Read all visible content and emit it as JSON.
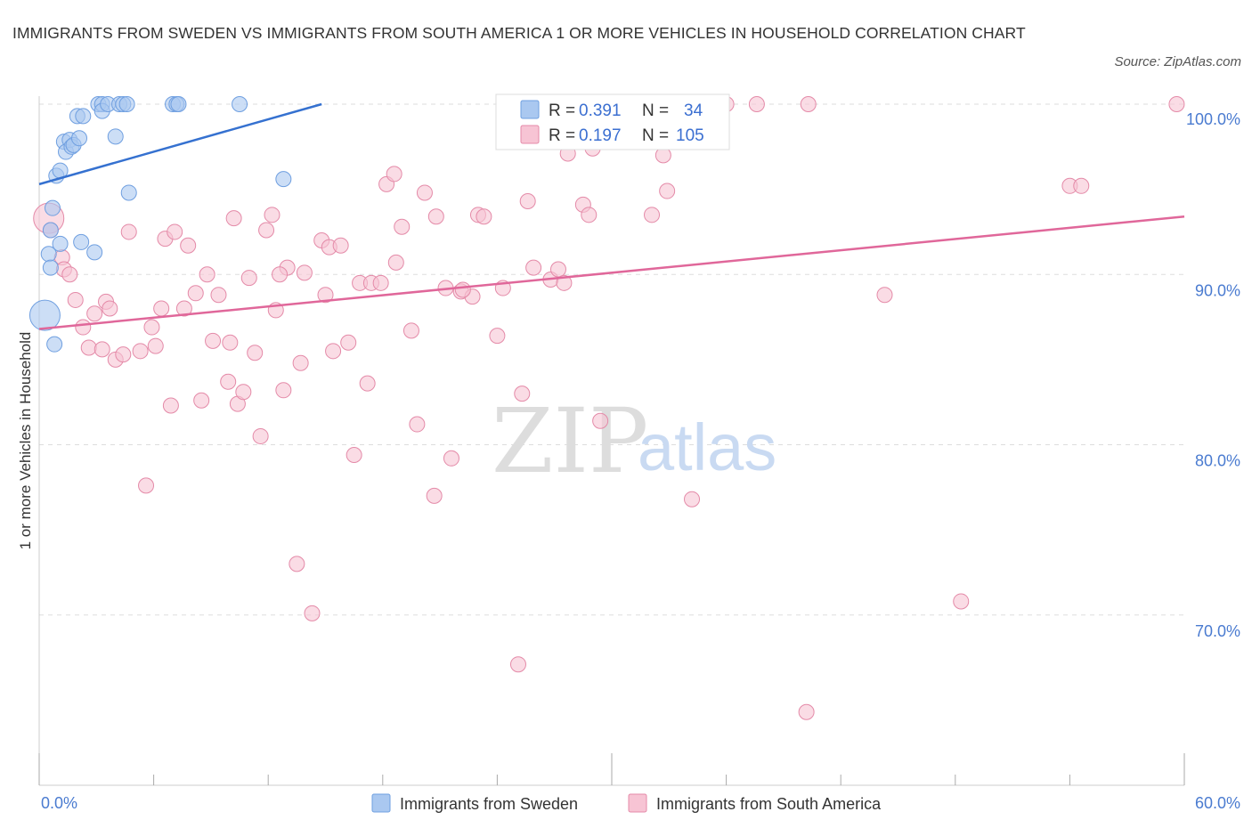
{
  "title": "IMMIGRANTS FROM SWEDEN VS IMMIGRANTS FROM SOUTH AMERICA 1 OR MORE VEHICLES IN HOUSEHOLD CORRELATION CHART",
  "source": "Source: ZipAtlas.com",
  "watermark": {
    "zip": "ZIP",
    "atlas": "atlas"
  },
  "legend": {
    "r_label": "R =",
    "n_label": "N =",
    "rows": [
      {
        "r": "0.391",
        "n": "34"
      },
      {
        "r": "0.197",
        "n": "105"
      }
    ]
  },
  "colors": {
    "sweden_fill": "#aac8f0",
    "sweden_stroke": "#6f9fe0",
    "sweden_line": "#3571d0",
    "sa_fill": "#f7c4d4",
    "sa_stroke": "#e48aa8",
    "sa_line": "#e0679a",
    "tick_label": "#4a7bd0",
    "grid": "#dddddd"
  },
  "chart_data": {
    "type": "scatter",
    "title": "IMMIGRANTS FROM SWEDEN VS IMMIGRANTS FROM SOUTH AMERICA 1 OR MORE VEHICLES IN HOUSEHOLD CORRELATION CHART",
    "xlabel": "",
    "ylabel": "1 or more Vehicles in Household",
    "xlim": [
      0,
      60
    ],
    "ylim": [
      60,
      100
    ],
    "x_tick_labels": [
      "0.0%",
      "60.0%"
    ],
    "y_ticks": [
      70,
      80,
      90,
      100
    ],
    "y_tick_labels": [
      "70.0%",
      "80.0%",
      "90.0%",
      "100.0%"
    ],
    "grid": true,
    "legend_position": "top-center",
    "series": [
      {
        "name": "Immigrants from Sweden",
        "r": 0.391,
        "n": 34,
        "trend": {
          "x": [
            0,
            14.8
          ],
          "y": [
            95.3,
            100
          ]
        },
        "points": [
          [
            0.3,
            87.6,
            "large"
          ],
          [
            0.5,
            91.2
          ],
          [
            0.6,
            90.4
          ],
          [
            0.6,
            92.6
          ],
          [
            0.7,
            93.9
          ],
          [
            0.8,
            85.9
          ],
          [
            0.9,
            95.8
          ],
          [
            1.1,
            96.1
          ],
          [
            1.1,
            91.8
          ],
          [
            1.3,
            97.8
          ],
          [
            1.4,
            97.2
          ],
          [
            1.6,
            97.9
          ],
          [
            1.7,
            97.5
          ],
          [
            1.8,
            97.6
          ],
          [
            2.0,
            99.3
          ],
          [
            2.1,
            98.0
          ],
          [
            2.3,
            99.3
          ],
          [
            2.2,
            91.9
          ],
          [
            2.9,
            91.3
          ],
          [
            3.1,
            100
          ],
          [
            3.3,
            100
          ],
          [
            3.3,
            99.6
          ],
          [
            3.6,
            100
          ],
          [
            4.0,
            98.1
          ],
          [
            4.2,
            100
          ],
          [
            4.4,
            100
          ],
          [
            4.6,
            100
          ],
          [
            4.7,
            94.8
          ],
          [
            7.0,
            100
          ],
          [
            7.2,
            100
          ],
          [
            7.3,
            100
          ],
          [
            10.5,
            100
          ],
          [
            12.8,
            95.6
          ],
          [
            26.1,
            100
          ]
        ]
      },
      {
        "name": "Immigrants from South America",
        "r": 0.197,
        "n": 105,
        "trend": {
          "x": [
            0,
            60
          ],
          "y": [
            86.8,
            93.4
          ]
        },
        "points": [
          [
            0.5,
            93.3,
            "large"
          ],
          [
            0.6,
            92.6
          ],
          [
            1.2,
            91.0
          ],
          [
            1.3,
            90.3
          ],
          [
            1.6,
            90.0
          ],
          [
            1.9,
            88.5
          ],
          [
            2.3,
            86.9
          ],
          [
            2.6,
            85.7
          ],
          [
            2.9,
            87.7
          ],
          [
            3.3,
            85.6
          ],
          [
            3.5,
            88.4
          ],
          [
            3.7,
            88.0
          ],
          [
            4.0,
            85.0
          ],
          [
            4.4,
            85.3
          ],
          [
            4.7,
            92.5
          ],
          [
            5.3,
            85.5
          ],
          [
            5.6,
            77.6
          ],
          [
            5.9,
            86.9
          ],
          [
            6.1,
            85.8
          ],
          [
            6.4,
            88.0
          ],
          [
            6.6,
            92.1
          ],
          [
            6.9,
            82.3
          ],
          [
            7.1,
            92.5
          ],
          [
            7.6,
            88.0
          ],
          [
            7.8,
            91.7
          ],
          [
            8.2,
            88.9
          ],
          [
            8.5,
            82.6
          ],
          [
            8.8,
            90.0
          ],
          [
            9.1,
            86.1
          ],
          [
            9.4,
            88.8
          ],
          [
            9.9,
            83.7
          ],
          [
            10.2,
            93.3
          ],
          [
            10.4,
            82.4
          ],
          [
            10.7,
            83.1
          ],
          [
            11.0,
            89.8
          ],
          [
            11.3,
            85.4
          ],
          [
            11.6,
            80.5
          ],
          [
            11.9,
            92.6
          ],
          [
            12.2,
            93.5
          ],
          [
            12.4,
            87.9
          ],
          [
            12.8,
            83.2
          ],
          [
            13.0,
            90.4
          ],
          [
            13.5,
            73.0
          ],
          [
            13.7,
            84.8
          ],
          [
            13.9,
            90.1
          ],
          [
            14.3,
            70.1
          ],
          [
            14.8,
            92.0
          ],
          [
            15.0,
            88.8
          ],
          [
            15.2,
            91.6
          ],
          [
            15.4,
            85.5
          ],
          [
            15.8,
            91.7
          ],
          [
            16.2,
            86.0
          ],
          [
            16.5,
            79.4
          ],
          [
            16.8,
            89.5
          ],
          [
            17.2,
            83.6
          ],
          [
            17.4,
            89.5
          ],
          [
            17.9,
            89.5
          ],
          [
            18.2,
            95.3
          ],
          [
            18.6,
            95.9
          ],
          [
            18.7,
            90.7
          ],
          [
            19.0,
            92.8
          ],
          [
            19.5,
            86.7
          ],
          [
            19.8,
            81.2
          ],
          [
            20.2,
            94.8
          ],
          [
            20.7,
            77.0
          ],
          [
            20.8,
            93.4
          ],
          [
            21.3,
            89.2
          ],
          [
            21.6,
            79.2
          ],
          [
            22.1,
            89.0
          ],
          [
            22.7,
            88.7
          ],
          [
            23.0,
            93.5
          ],
          [
            23.3,
            93.4
          ],
          [
            24.0,
            86.4
          ],
          [
            24.3,
            89.2
          ],
          [
            24.5,
            100
          ],
          [
            25.1,
            67.1
          ],
          [
            25.3,
            83.0
          ],
          [
            25.6,
            94.3
          ],
          [
            25.9,
            90.4
          ],
          [
            26.4,
            99.9
          ],
          [
            26.8,
            89.7
          ],
          [
            27.2,
            90.3
          ],
          [
            27.5,
            89.5
          ],
          [
            27.7,
            97.1
          ],
          [
            27.8,
            98.4
          ],
          [
            28.5,
            94.1
          ],
          [
            28.8,
            93.5
          ],
          [
            29.0,
            97.4
          ],
          [
            29.4,
            81.4
          ],
          [
            32.1,
            93.5
          ],
          [
            32.7,
            97.0
          ],
          [
            32.9,
            94.9
          ],
          [
            34.2,
            76.8
          ],
          [
            36.0,
            100
          ],
          [
            37.6,
            100
          ],
          [
            40.2,
            64.3
          ],
          [
            40.3,
            100
          ],
          [
            44.3,
            88.8
          ],
          [
            48.3,
            70.8
          ],
          [
            54.0,
            95.2
          ],
          [
            54.6,
            95.2
          ],
          [
            59.6,
            100
          ],
          [
            10.0,
            86.0
          ],
          [
            12.6,
            90.0
          ],
          [
            22.2,
            89.1
          ]
        ]
      }
    ]
  },
  "bottom_legend": [
    "Immigrants from Sweden",
    "Immigrants from South America"
  ]
}
